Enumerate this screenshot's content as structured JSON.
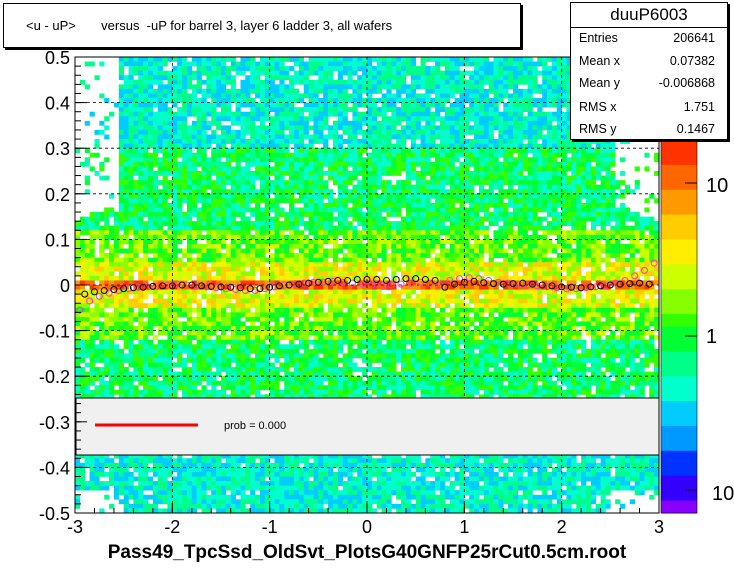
{
  "title": "<u - uP>       versus  -uP for barrel 3, layer 6 ladder 3, all wafers",
  "stats": {
    "name": "duuP6003",
    "rows": [
      {
        "k": "Entries",
        "v": "206641"
      },
      {
        "k": "Mean x",
        "v": "0.07382"
      },
      {
        "k": "Mean y",
        "v": "-0.006868"
      },
      {
        "k": "RMS x",
        "v": "1.751"
      },
      {
        "k": "RMS y",
        "v": "0.1467"
      }
    ]
  },
  "xaxis_title": "Pass49_TpcSsd_OldSvt_PlotsG40GNFP25rCut0.5cm.root",
  "legend": {
    "label": "prob = 0.000",
    "line_color": "#ff0000"
  },
  "palette_labels": [
    "10",
    "1",
    "10"
  ],
  "chart_data": {
    "type": "heatmap",
    "xlim": [
      -3,
      3
    ],
    "ylim": [
      -0.5,
      0.5
    ],
    "xticks": [
      -3,
      -2,
      -1,
      0,
      1,
      2,
      3
    ],
    "yticks": [
      -0.5,
      -0.4,
      -0.3,
      -0.2,
      -0.1,
      0,
      0.1,
      0.2,
      0.3,
      0.4,
      0.5
    ],
    "ytick_labels": [
      "-0.5",
      "-0.4",
      "-0.3",
      "-0.2",
      "-0.1",
      "0",
      "0.1",
      "0.2",
      "0.3",
      "0.4",
      "0.5"
    ],
    "z_scale": "log",
    "grid": true,
    "band_center": 0,
    "band_halfwidth_core": 0.01,
    "band_halfwidth_inner": 0.05,
    "series": [
      {
        "marker_color": "#000000",
        "x": [
          -2.9,
          -2.8,
          -2.7,
          -2.6,
          -2.5,
          -2.4,
          -2.3,
          -2.2,
          -2.1,
          -2.0,
          -1.9,
          -1.8,
          -1.7,
          -1.6,
          -1.5,
          -1.4,
          -1.3,
          -1.2,
          -1.1,
          -1.0,
          -0.9,
          -0.8,
          -0.7,
          -0.6,
          -0.5,
          -0.4,
          -0.3,
          -0.2,
          -0.1,
          0.0,
          0.1,
          0.2,
          0.3,
          0.4,
          0.5,
          0.6,
          0.7,
          0.8,
          0.9,
          1.0,
          1.1,
          1.2,
          1.3,
          1.4,
          1.5,
          1.6,
          1.7,
          1.8,
          1.9,
          2.0,
          2.1,
          2.2,
          2.3,
          2.4,
          2.5,
          2.6,
          2.7,
          2.8,
          2.9
        ],
        "y": [
          -0.02,
          -0.015,
          -0.012,
          -0.01,
          -0.008,
          -0.006,
          -0.005,
          -0.003,
          -0.002,
          -0.002,
          0.0,
          0.0,
          -0.002,
          -0.003,
          -0.004,
          -0.005,
          -0.006,
          -0.008,
          -0.008,
          -0.005,
          -0.002,
          0.0,
          0.002,
          0.004,
          0.006,
          0.008,
          0.01,
          0.01,
          0.012,
          0.012,
          0.012,
          0.01,
          0.012,
          0.014,
          0.014,
          0.012,
          0.01,
          -0.005,
          0.002,
          0.006,
          0.008,
          0.005,
          0.003,
          0.002,
          0.003,
          0.004,
          0.002,
          0.0,
          -0.002,
          -0.004,
          -0.005,
          -0.006,
          -0.004,
          -0.002,
          0.0,
          0.002,
          0.003,
          0.004,
          0.002
        ]
      },
      {
        "marker_color": "#ff33cc",
        "x": [
          -2.95,
          -2.85,
          -2.75,
          -2.65,
          -2.55,
          -2.45,
          -2.35,
          -2.25,
          -2.15,
          -2.05,
          -1.95,
          -1.85,
          -1.75,
          -1.65,
          -1.55,
          -1.45,
          -1.35,
          -1.25,
          -1.15,
          -1.05,
          -0.95,
          -0.85,
          -0.75,
          -0.65,
          -0.55,
          -0.45,
          -0.35,
          -0.25,
          -0.15,
          -0.05,
          0.05,
          0.15,
          0.25,
          0.35,
          0.45,
          0.55,
          0.65,
          0.75,
          0.85,
          0.95,
          1.05,
          1.15,
          1.25,
          1.35,
          1.45,
          1.55,
          1.65,
          1.75,
          1.85,
          1.95,
          2.05,
          2.15,
          2.25,
          2.35,
          2.45,
          2.55,
          2.65,
          2.75,
          2.85,
          2.95
        ],
        "y": [
          -0.055,
          -0.035,
          -0.025,
          -0.018,
          -0.012,
          -0.008,
          -0.005,
          -0.004,
          -0.003,
          0.0,
          0.002,
          0.0,
          -0.002,
          -0.004,
          -0.006,
          -0.008,
          -0.01,
          -0.012,
          -0.012,
          -0.008,
          -0.004,
          0.0,
          0.002,
          0.004,
          0.006,
          0.006,
          0.008,
          0.006,
          0.004,
          0.002,
          0.0,
          0.0,
          0.0,
          0.002,
          0.004,
          0.006,
          0.004,
          0.0,
          0.01,
          0.014,
          0.016,
          0.014,
          0.01,
          0.006,
          0.004,
          0.002,
          0.0,
          -0.002,
          -0.004,
          -0.006,
          -0.008,
          -0.008,
          -0.006,
          -0.004,
          -0.002,
          0.004,
          0.01,
          0.02,
          0.032,
          0.048
        ]
      }
    ]
  }
}
